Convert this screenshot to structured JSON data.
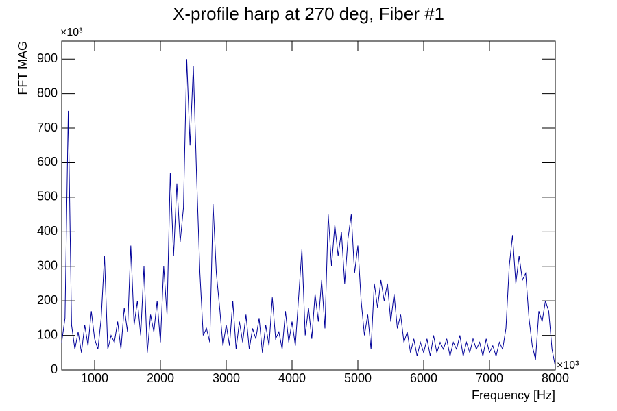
{
  "chart_data": {
    "type": "line",
    "title": "X-profile harp at 270 deg, Fiber #1",
    "x_label": "Frequency [Hz]",
    "y_label": "FFT MAG",
    "x_exponent": "×10³",
    "y_exponent": "×10³",
    "xlim": [
      500,
      8000
    ],
    "ylim": [
      0,
      952
    ],
    "xticks": [
      1000,
      2000,
      3000,
      4000,
      5000,
      6000,
      7000,
      8000
    ],
    "yticks": [
      0,
      100,
      200,
      300,
      400,
      500,
      600,
      700,
      800,
      900
    ],
    "x": [
      500,
      550,
      600,
      650,
      700,
      750,
      800,
      850,
      900,
      950,
      1000,
      1050,
      1100,
      1150,
      1200,
      1250,
      1300,
      1350,
      1400,
      1450,
      1500,
      1550,
      1600,
      1650,
      1700,
      1750,
      1800,
      1850,
      1900,
      1950,
      2000,
      2050,
      2100,
      2150,
      2200,
      2250,
      2300,
      2350,
      2400,
      2450,
      2500,
      2550,
      2600,
      2650,
      2700,
      2750,
      2800,
      2850,
      2900,
      2950,
      3000,
      3050,
      3100,
      3150,
      3200,
      3250,
      3300,
      3350,
      3400,
      3450,
      3500,
      3550,
      3600,
      3650,
      3700,
      3750,
      3800,
      3850,
      3900,
      3950,
      4000,
      4050,
      4100,
      4150,
      4200,
      4250,
      4300,
      4350,
      4400,
      4450,
      4500,
      4550,
      4600,
      4650,
      4700,
      4750,
      4800,
      4850,
      4900,
      4950,
      5000,
      5050,
      5100,
      5150,
      5200,
      5250,
      5300,
      5350,
      5400,
      5450,
      5500,
      5550,
      5600,
      5650,
      5700,
      5750,
      5800,
      5850,
      5900,
      5950,
      6000,
      6050,
      6100,
      6150,
      6200,
      6250,
      6300,
      6350,
      6400,
      6450,
      6500,
      6550,
      6600,
      6650,
      6700,
      6750,
      6800,
      6850,
      6900,
      6950,
      7000,
      7050,
      7100,
      7150,
      7200,
      7250,
      7300,
      7350,
      7400,
      7450,
      7500,
      7550,
      7600,
      7650,
      7700,
      7750,
      7800,
      7850,
      7900,
      7950,
      8000
    ],
    "series": [
      {
        "color": "#000099",
        "values": [
          80,
          150,
          750,
          130,
          60,
          110,
          50,
          130,
          70,
          170,
          90,
          60,
          150,
          330,
          60,
          100,
          80,
          140,
          60,
          180,
          110,
          360,
          130,
          200,
          100,
          300,
          50,
          160,
          110,
          200,
          80,
          300,
          160,
          570,
          330,
          540,
          370,
          470,
          900,
          650,
          880,
          560,
          280,
          100,
          120,
          80,
          480,
          280,
          180,
          70,
          130,
          70,
          200,
          60,
          140,
          80,
          160,
          60,
          120,
          90,
          150,
          50,
          130,
          70,
          210,
          90,
          110,
          60,
          170,
          80,
          140,
          70,
          210,
          350,
          100,
          180,
          90,
          220,
          140,
          260,
          120,
          450,
          300,
          420,
          330,
          400,
          250,
          380,
          450,
          280,
          360,
          200,
          100,
          160,
          60,
          250,
          180,
          260,
          200,
          250,
          140,
          220,
          120,
          160,
          80,
          110,
          50,
          90,
          40,
          80,
          50,
          90,
          40,
          100,
          50,
          80,
          60,
          90,
          40,
          80,
          60,
          100,
          40,
          80,
          50,
          90,
          60,
          80,
          40,
          90,
          50,
          70,
          40,
          80,
          60,
          120,
          300,
          390,
          250,
          330,
          260,
          280,
          150,
          70,
          30,
          170,
          140,
          200,
          170,
          60,
          10
        ]
      }
    ]
  }
}
